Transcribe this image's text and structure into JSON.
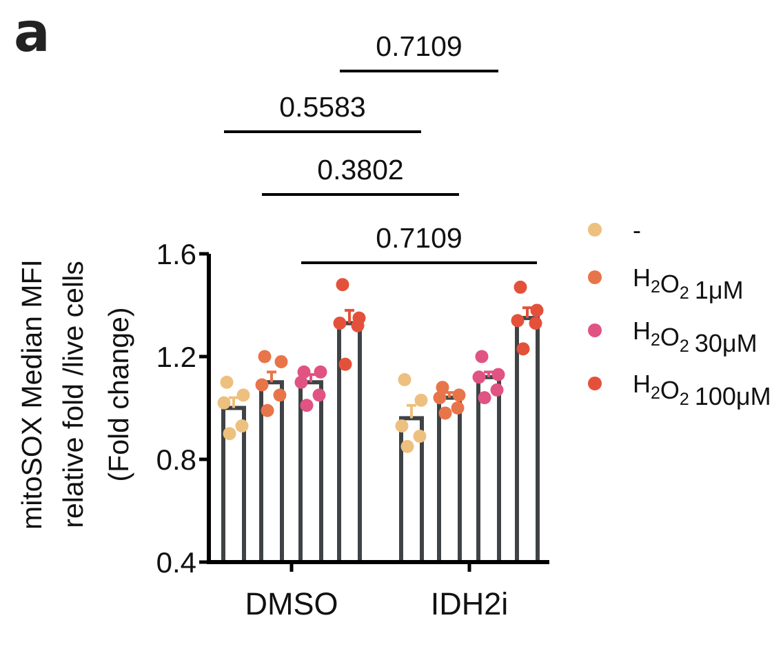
{
  "panel_letter": "a",
  "chart_data": {
    "type": "bar",
    "title": "",
    "ylabel_lines": [
      "mitoSOX Median MFI",
      "relative fold /live cells",
      "(Fold change)"
    ],
    "xlabel": "",
    "ylim": [
      0.4,
      1.6
    ],
    "yticks": [
      {
        "value": 0.4,
        "label": "0.4"
      },
      {
        "value": 0.8,
        "label": "0.8"
      },
      {
        "value": 1.2,
        "label": "1.2"
      },
      {
        "value": 1.6,
        "label": "1.6"
      }
    ],
    "categories": [
      "DMSO",
      "IDH2i"
    ],
    "legend_position": "right",
    "series": [
      {
        "name": "-",
        "legend_prefix": "",
        "color": "#EDC07F",
        "means": [
          1.0,
          0.96
        ],
        "errors": [
          0.04,
          0.05
        ],
        "points": [
          [
            1.1,
            1.05,
            1.02,
            0.93,
            0.9
          ],
          [
            1.11,
            1.03,
            0.93,
            0.89,
            0.85
          ]
        ]
      },
      {
        "name": "1μM",
        "legend_prefix": "H2O2",
        "color": "#E8744A",
        "means": [
          1.1,
          1.04
        ],
        "errors": [
          0.04,
          0.02
        ],
        "points": [
          [
            1.2,
            1.18,
            1.09,
            1.05,
            0.99
          ],
          [
            1.08,
            1.05,
            1.04,
            1.0,
            0.98
          ]
        ]
      },
      {
        "name": "30μM",
        "legend_prefix": "H2O2",
        "color": "#E05382",
        "means": [
          1.1,
          1.12
        ],
        "errors": [
          0.03,
          0.02
        ],
        "points": [
          [
            1.14,
            1.14,
            1.1,
            1.05,
            1.01
          ],
          [
            1.2,
            1.13,
            1.12,
            1.07,
            1.04
          ]
        ]
      },
      {
        "name": "100μM",
        "legend_prefix": "H2O2",
        "color": "#E4513A",
        "means": [
          1.33,
          1.35
        ],
        "errors": [
          0.05,
          0.04
        ],
        "points": [
          [
            1.48,
            1.35,
            1.33,
            1.32,
            1.17
          ],
          [
            1.47,
            1.38,
            1.34,
            1.33,
            1.23
          ]
        ]
      }
    ],
    "significance": [
      {
        "label": "0.7109",
        "from": {
          "category": 0,
          "series": 3
        },
        "to": {
          "category": 1,
          "series": 2
        },
        "tier": 4
      },
      {
        "label": "0.5583",
        "from": {
          "category": 0,
          "series": 0
        },
        "to": {
          "category": 1,
          "series": 0
        },
        "tier": 3
      },
      {
        "label": "0.3802",
        "from": {
          "category": 0,
          "series": 1
        },
        "to": {
          "category": 1,
          "series": 1
        },
        "tier": 2
      },
      {
        "label": "0.7109",
        "from": {
          "category": 0,
          "series": 2
        },
        "to": {
          "category": 1,
          "series": 3
        },
        "tier": 1
      }
    ]
  }
}
